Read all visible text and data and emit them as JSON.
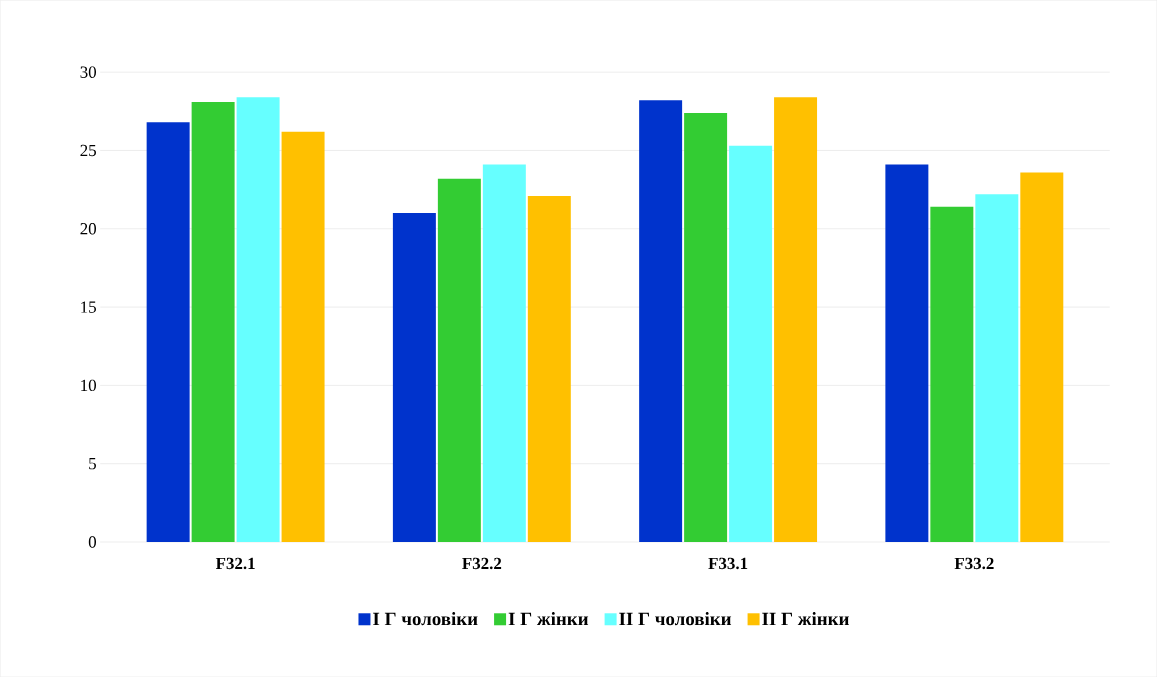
{
  "chart_data": {
    "type": "bar",
    "categories": [
      "F32.1",
      "F32.2",
      "F33.1",
      "F33.2"
    ],
    "series": [
      {
        "name": "І Г чоловіки",
        "color": "#0033cc",
        "values": [
          26.8,
          21.0,
          28.2,
          24.1
        ]
      },
      {
        "name": "І Г жінки",
        "color": "#33cc33",
        "values": [
          28.1,
          23.2,
          27.4,
          21.4
        ]
      },
      {
        "name": "ІІ Г чоловіки",
        "color": "#66ffff",
        "values": [
          28.4,
          24.1,
          25.3,
          22.2
        ]
      },
      {
        "name": "ІІ Г жінки",
        "color": "#ffc000",
        "values": [
          26.2,
          22.1,
          28.4,
          23.6
        ]
      }
    ],
    "ylim": [
      0,
      30
    ],
    "yticks": [
      0,
      5,
      10,
      15,
      20,
      25,
      30
    ],
    "grid": "y",
    "legend": "bottom"
  }
}
